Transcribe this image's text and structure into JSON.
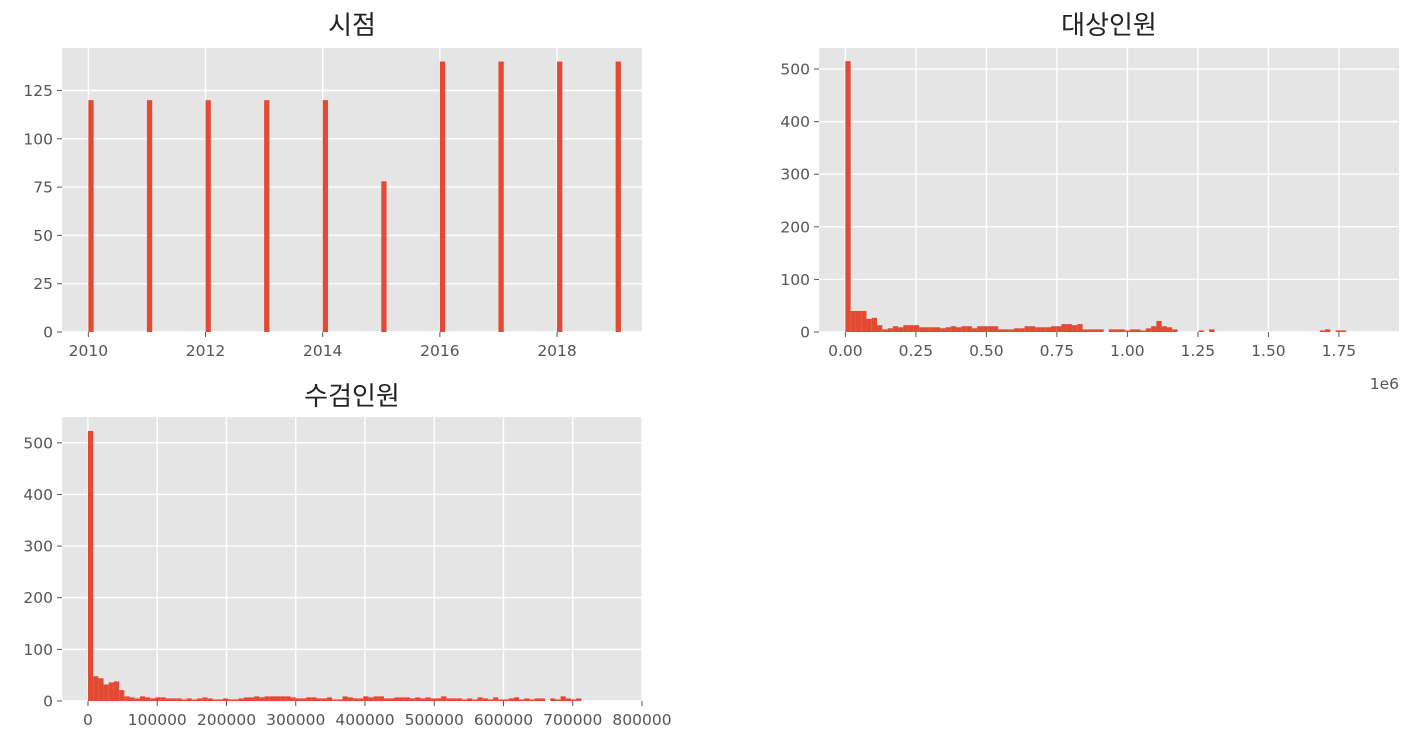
{
  "chart_data": [
    {
      "type": "bar",
      "title": "시점",
      "xlabel": "",
      "ylabel": "",
      "xlim": [
        2009.55,
        2019.45
      ],
      "ylim": [
        0,
        147
      ],
      "grid": true,
      "bin_width": 0.09,
      "x_ticks": [
        2010,
        2012,
        2014,
        2016,
        2018
      ],
      "x_tick_labels": [
        "2010",
        "2012",
        "2014",
        "2016",
        "2018"
      ],
      "y_ticks": [
        0,
        25,
        50,
        75,
        100,
        125
      ],
      "y_tick_labels": [
        "0",
        "25",
        "50",
        "75",
        "100",
        "125"
      ],
      "x_offset_label": "",
      "color": "#e24a33",
      "x": [
        2010,
        2011,
        2012,
        2013,
        2014,
        2015,
        2016,
        2017,
        2018,
        2019
      ],
      "values": [
        120,
        120,
        120,
        120,
        120,
        78,
        140,
        140,
        140,
        140
      ]
    },
    {
      "type": "bar",
      "title": "대상인원",
      "xlabel": "",
      "ylabel": "",
      "xlim": [
        -0.0935,
        1.963
      ],
      "ylim": [
        0,
        540
      ],
      "grid": true,
      "bin_width": 0.01869,
      "x_ticks": [
        0,
        0.25,
        0.5,
        0.75,
        1.0,
        1.25,
        1.5,
        1.75
      ],
      "x_tick_labels": [
        "0.00",
        "0.25",
        "0.50",
        "0.75",
        "1.00",
        "1.25",
        "1.50",
        "1.75"
      ],
      "y_ticks": [
        0,
        100,
        200,
        300,
        400,
        500
      ],
      "y_tick_labels": [
        "0",
        "100",
        "200",
        "300",
        "400",
        "500"
      ],
      "x_offset_label": "1e6",
      "color": "#e24a33",
      "x": [
        0.0,
        0.0187,
        0.0374,
        0.0561,
        0.0748,
        0.0935,
        0.1121,
        0.1308,
        0.1495,
        0.1682,
        0.1869,
        0.2056,
        0.2243,
        0.243,
        0.2617,
        0.2804,
        0.2991,
        0.3177,
        0.3364,
        0.3551,
        0.3738,
        0.3925,
        0.4112,
        0.4299,
        0.4486,
        0.4673,
        0.486,
        0.5047,
        0.5234,
        0.5421,
        0.5607,
        0.5794,
        0.5981,
        0.6168,
        0.6355,
        0.6542,
        0.6729,
        0.6916,
        0.7103,
        0.729,
        0.7477,
        0.7664,
        0.785,
        0.8037,
        0.8224,
        0.8411,
        0.8598,
        0.8785,
        0.8972,
        0.9159,
        0.9346,
        0.9533,
        0.972,
        0.9907,
        1.0093,
        1.028,
        1.0467,
        1.0654,
        1.0841,
        1.1028,
        1.1215,
        1.1402,
        1.1589,
        1.1776,
        1.1963,
        1.215,
        1.2336,
        1.2523,
        1.271,
        1.2897,
        1.3084,
        1.3271,
        1.3458,
        1.3645,
        1.3832,
        1.4019,
        1.4206,
        1.4393,
        1.458,
        1.4766,
        1.4953,
        1.514,
        1.5327,
        1.5514,
        1.5701,
        1.5888,
        1.6075,
        1.6262,
        1.6449,
        1.6636,
        1.6822,
        1.7009,
        1.7196,
        1.7383,
        1.757,
        1.7757,
        1.7944,
        1.8131,
        1.8318,
        1.8505
      ],
      "values": [
        515,
        40,
        40,
        40,
        25,
        27,
        13,
        5,
        7,
        11,
        9,
        13,
        13,
        13,
        9,
        9,
        9,
        9,
        7,
        9,
        11,
        9,
        11,
        11,
        7,
        11,
        11,
        11,
        11,
        5,
        5,
        5,
        7,
        7,
        11,
        11,
        9,
        9,
        9,
        11,
        11,
        15,
        15,
        13,
        15,
        5,
        5,
        5,
        5,
        0,
        5,
        5,
        5,
        3,
        5,
        5,
        3,
        7,
        11,
        21,
        11,
        9,
        5,
        0,
        0,
        0,
        0,
        3,
        0,
        5,
        0,
        0,
        0,
        0,
        0,
        0,
        0,
        0,
        0,
        0,
        0,
        0,
        0,
        0,
        0,
        0,
        0,
        0,
        0,
        0,
        3,
        5,
        0,
        3,
        3,
        0,
        0,
        0,
        0,
        0
      ]
    },
    {
      "type": "bar",
      "title": "수검인원",
      "xlabel": "",
      "ylabel": "",
      "xlim": [
        -37500,
        800000
      ],
      "ylim": [
        0,
        550
      ],
      "grid": true,
      "bin_width": 7500,
      "x_ticks": [
        0,
        100000,
        200000,
        300000,
        400000,
        500000,
        600000,
        700000,
        800000
      ],
      "x_tick_labels": [
        "0",
        "100000",
        "200000",
        "300000",
        "400000",
        "500000",
        "600000",
        "700000",
        "800000"
      ],
      "y_ticks": [
        0,
        100,
        200,
        300,
        400,
        500
      ],
      "y_tick_labels": [
        "0",
        "100",
        "200",
        "300",
        "400",
        "500"
      ],
      "x_offset_label": "",
      "color": "#e24a33",
      "x": [
        0,
        7500,
        15000,
        22500,
        30000,
        37500,
        45000,
        52500,
        60000,
        67500,
        75000,
        82500,
        90000,
        97500,
        105000,
        112500,
        120000,
        127500,
        135000,
        142500,
        150000,
        157500,
        165000,
        172500,
        180000,
        187500,
        195000,
        202500,
        210000,
        217500,
        225000,
        232500,
        240000,
        247500,
        255000,
        262500,
        270000,
        277500,
        285000,
        292500,
        300000,
        307500,
        315000,
        322500,
        330000,
        337500,
        345000,
        352500,
        360000,
        367500,
        375000,
        382500,
        390000,
        397500,
        405000,
        412500,
        420000,
        427500,
        435000,
        442500,
        450000,
        457500,
        465000,
        472500,
        480000,
        487500,
        495000,
        502500,
        510000,
        517500,
        525000,
        532500,
        540000,
        547500,
        555000,
        562500,
        570000,
        577500,
        585000,
        592500,
        600000,
        607500,
        615000,
        622500,
        630000,
        637500,
        645000,
        652500,
        660000,
        667500,
        675000,
        682500,
        690000,
        697500,
        705000,
        712500,
        720000,
        727500,
        735000,
        742500
      ],
      "values": [
        523,
        48,
        44,
        32,
        36,
        38,
        21,
        9,
        7,
        5,
        9,
        7,
        5,
        7,
        7,
        5,
        5,
        5,
        3,
        5,
        3,
        5,
        7,
        5,
        3,
        3,
        5,
        3,
        3,
        5,
        7,
        7,
        9,
        7,
        9,
        9,
        9,
        9,
        9,
        7,
        5,
        5,
        7,
        7,
        5,
        5,
        7,
        3,
        3,
        9,
        7,
        5,
        5,
        9,
        7,
        9,
        9,
        5,
        5,
        7,
        7,
        7,
        5,
        7,
        5,
        7,
        5,
        5,
        9,
        5,
        5,
        5,
        3,
        5,
        3,
        7,
        5,
        3,
        7,
        3,
        3,
        5,
        7,
        3,
        5,
        3,
        5,
        5,
        0,
        5,
        3,
        9,
        5,
        3,
        5,
        0,
        0,
        0,
        0,
        0
      ]
    }
  ]
}
